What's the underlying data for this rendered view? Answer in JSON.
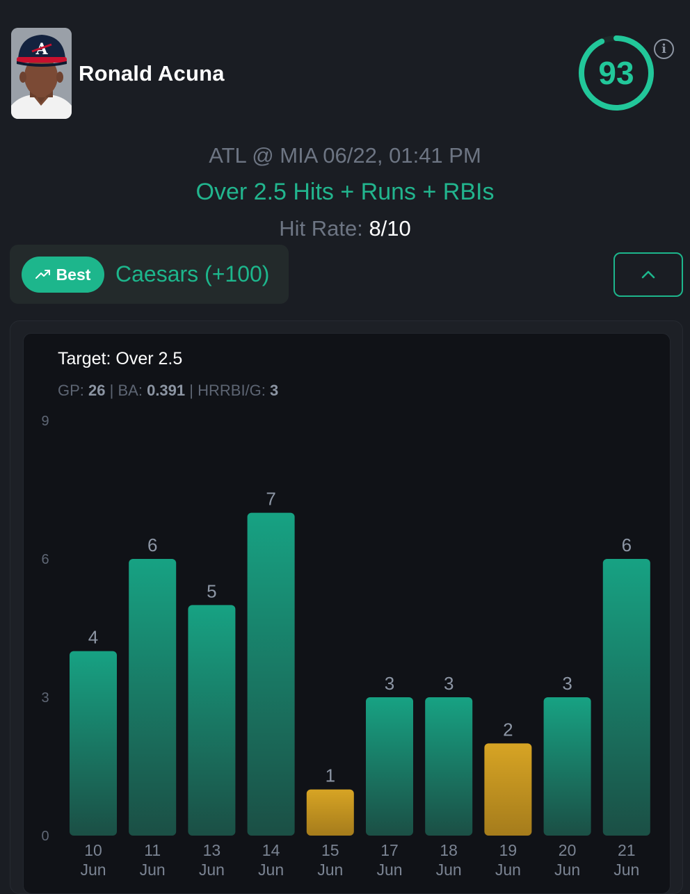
{
  "player": {
    "name": "Ronald Acuna",
    "avatar_icon": "player-headshot-icon",
    "score": "93"
  },
  "game": {
    "matchup": "ATL @ MIA 06/22, 01:41 PM",
    "prop": "Over 2.5 Hits + Runs + RBIs",
    "hit_rate_label": "Hit Rate:",
    "hit_rate_value": "8/10"
  },
  "book": {
    "badge_label": "Best",
    "badge_icon": "trending-up-icon",
    "name": "Caesars (+100)"
  },
  "colors": {
    "accent": "#1db68c",
    "hit_bar": "#15967a",
    "miss_bar": "#c89a22"
  },
  "chart": {
    "target_label": "Target: Over 2.5",
    "stats": {
      "gp_label": "GP:",
      "gp_value": "26",
      "ba_label": "BA:",
      "ba_value": "0.391",
      "hrrbi_label": "HRRBI/G:",
      "hrrbi_value": "3",
      "sep": "|"
    }
  },
  "chart_data": {
    "type": "bar",
    "categories": [
      [
        "10",
        "Jun"
      ],
      [
        "11",
        "Jun"
      ],
      [
        "13",
        "Jun"
      ],
      [
        "14",
        "Jun"
      ],
      [
        "15",
        "Jun"
      ],
      [
        "17",
        "Jun"
      ],
      [
        "18",
        "Jun"
      ],
      [
        "19",
        "Jun"
      ],
      [
        "20",
        "Jun"
      ],
      [
        "21",
        "Jun"
      ]
    ],
    "values": [
      4,
      6,
      5,
      7,
      1,
      3,
      3,
      2,
      3,
      6
    ],
    "target": 2.5,
    "yticks": [
      0,
      3,
      6,
      9
    ],
    "ylim": [
      0,
      9
    ],
    "title": "Target: Over 2.5",
    "xlabel": "",
    "ylabel": "",
    "grid": false
  }
}
